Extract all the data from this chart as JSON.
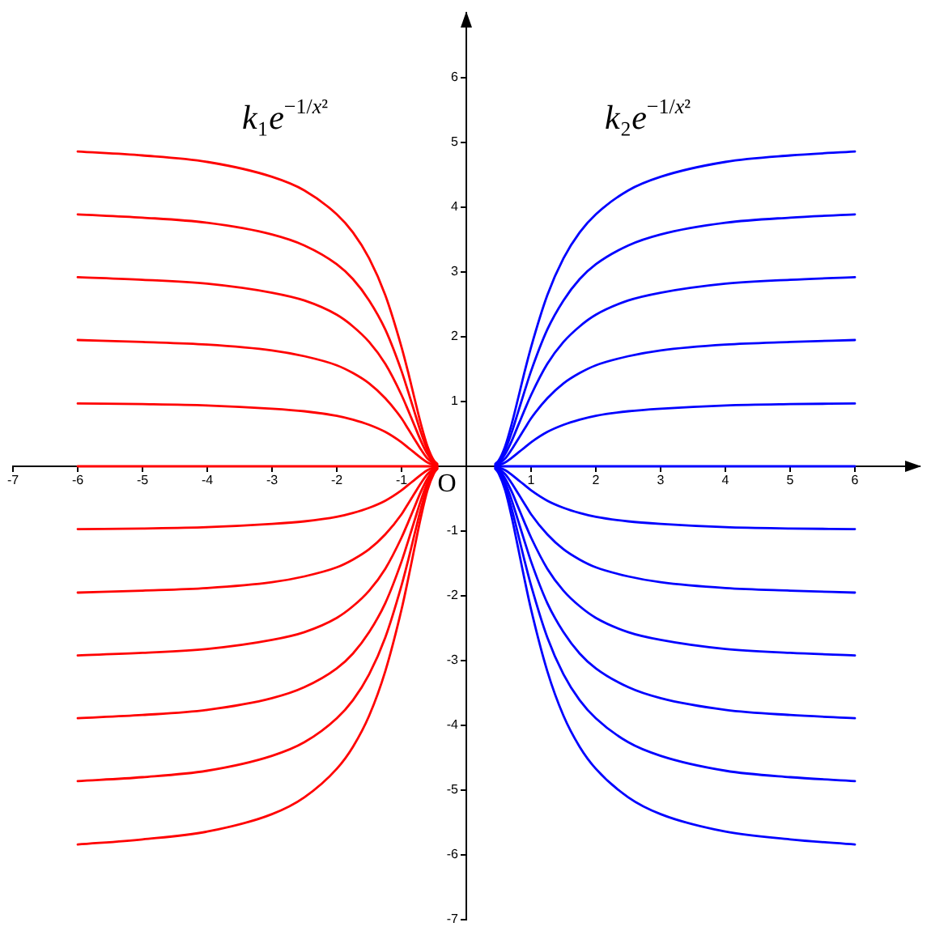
{
  "chart_data": {
    "type": "line",
    "xlim": [
      -7,
      7
    ],
    "ylim": [
      -7,
      7
    ],
    "xticks": [
      -7,
      -6,
      -5,
      -4,
      -3,
      -2,
      -1,
      1,
      2,
      3,
      4,
      5,
      6
    ],
    "yticks": [
      -7,
      -6,
      -5,
      -4,
      -3,
      -2,
      -1,
      1,
      2,
      3,
      4,
      5,
      6
    ],
    "grid": false,
    "legend": false,
    "marker": "none",
    "line_style": "solid",
    "annotations": [
      "k₁e$^{−1/x²}$",
      "k₂e$^{−1/x²}$",
      "O"
    ],
    "series": [
      {
        "color": "#ff0000",
        "x": [
          -6,
          -5,
          -4,
          -3,
          -2.5,
          -2,
          -1.75,
          -1.5,
          -1.25,
          -1,
          -0.9,
          -0.8,
          -0.7,
          -0.6,
          -0.5,
          -0.45
        ],
        "values": [
          4.86,
          4.8,
          4.7,
          4.47,
          4.26,
          3.89,
          3.61,
          3.21,
          2.64,
          1.84,
          1.46,
          1.05,
          0.65,
          0.31,
          0.09,
          0.04
        ]
      },
      {
        "color": "#ff0000",
        "x": [
          -6,
          -5,
          -4,
          -3,
          -2.5,
          -2,
          -1.75,
          -1.5,
          -1.25,
          -1,
          -0.9,
          -0.8,
          -0.7,
          -0.6,
          -0.5,
          -0.45
        ],
        "values": [
          3.89,
          3.84,
          3.76,
          3.58,
          3.41,
          3.12,
          2.89,
          2.56,
          2.11,
          1.47,
          1.16,
          0.84,
          0.52,
          0.25,
          0.07,
          0.03
        ]
      },
      {
        "color": "#ff0000",
        "x": [
          -6,
          -5,
          -4,
          -3,
          -2.5,
          -2,
          -1.75,
          -1.5,
          -1.25,
          -1,
          -0.9,
          -0.8,
          -0.7,
          -0.6,
          -0.5,
          -0.45
        ],
        "values": [
          2.92,
          2.88,
          2.82,
          2.68,
          2.56,
          2.34,
          2.16,
          1.92,
          1.58,
          1.1,
          0.87,
          0.63,
          0.39,
          0.19,
          0.05,
          0.02
        ]
      },
      {
        "color": "#ff0000",
        "x": [
          -6,
          -5,
          -4,
          -3,
          -2.5,
          -2,
          -1.75,
          -1.5,
          -1.25,
          -1,
          -0.9,
          -0.8,
          -0.7,
          -0.6,
          -0.5,
          -0.45
        ],
        "values": [
          1.95,
          1.92,
          1.88,
          1.79,
          1.7,
          1.56,
          1.44,
          1.28,
          1.05,
          0.74,
          0.58,
          0.42,
          0.26,
          0.12,
          0.04,
          0.01
        ]
      },
      {
        "color": "#ff0000",
        "x": [
          -6,
          -5,
          -4,
          -3,
          -2.5,
          -2,
          -1.75,
          -1.5,
          -1.25,
          -1,
          -0.9,
          -0.8,
          -0.7,
          -0.6,
          -0.5,
          -0.45
        ],
        "values": [
          0.97,
          0.96,
          0.94,
          0.89,
          0.85,
          0.78,
          0.72,
          0.64,
          0.53,
          0.37,
          0.29,
          0.21,
          0.13,
          0.06,
          0.02,
          0.01
        ]
      },
      {
        "color": "#ff0000",
        "x": [
          -6,
          -5,
          -4,
          -3,
          -2.5,
          -2,
          -1.75,
          -1.5,
          -1.25,
          -1,
          -0.9,
          -0.8,
          -0.7,
          -0.6,
          -0.5,
          -0.45
        ],
        "values": [
          0,
          0,
          0,
          0,
          0,
          0,
          0,
          0,
          0,
          0,
          0,
          0,
          0,
          0,
          0,
          0
        ]
      },
      {
        "color": "#ff0000",
        "x": [
          -6,
          -5,
          -4,
          -3,
          -2.5,
          -2,
          -1.75,
          -1.5,
          -1.25,
          -1,
          -0.9,
          -0.8,
          -0.7,
          -0.6,
          -0.5,
          -0.45
        ],
        "values": [
          -0.97,
          -0.96,
          -0.94,
          -0.89,
          -0.85,
          -0.78,
          -0.72,
          -0.64,
          -0.53,
          -0.37,
          -0.29,
          -0.21,
          -0.13,
          -0.06,
          -0.02,
          -0.01
        ]
      },
      {
        "color": "#ff0000",
        "x": [
          -6,
          -5,
          -4,
          -3,
          -2.5,
          -2,
          -1.75,
          -1.5,
          -1.25,
          -1,
          -0.9,
          -0.8,
          -0.7,
          -0.6,
          -0.5,
          -0.45
        ],
        "values": [
          -1.95,
          -1.92,
          -1.88,
          -1.79,
          -1.7,
          -1.56,
          -1.44,
          -1.28,
          -1.05,
          -0.74,
          -0.58,
          -0.42,
          -0.26,
          -0.12,
          -0.04,
          -0.01
        ]
      },
      {
        "color": "#ff0000",
        "x": [
          -6,
          -5,
          -4,
          -3,
          -2.5,
          -2,
          -1.75,
          -1.5,
          -1.25,
          -1,
          -0.9,
          -0.8,
          -0.7,
          -0.6,
          -0.5,
          -0.45
        ],
        "values": [
          -2.92,
          -2.88,
          -2.82,
          -2.68,
          -2.56,
          -2.34,
          -2.16,
          -1.92,
          -1.58,
          -1.1,
          -0.87,
          -0.63,
          -0.39,
          -0.19,
          -0.05,
          -0.02
        ]
      },
      {
        "color": "#ff0000",
        "x": [
          -6,
          -5,
          -4,
          -3,
          -2.5,
          -2,
          -1.75,
          -1.5,
          -1.25,
          -1,
          -0.9,
          -0.8,
          -0.7,
          -0.6,
          -0.5,
          -0.45
        ],
        "values": [
          -3.89,
          -3.84,
          -3.76,
          -3.58,
          -3.41,
          -3.12,
          -2.89,
          -2.56,
          -2.11,
          -1.47,
          -1.16,
          -0.84,
          -0.52,
          -0.25,
          -0.07,
          -0.03
        ]
      },
      {
        "color": "#ff0000",
        "x": [
          -6,
          -5,
          -4,
          -3,
          -2.5,
          -2,
          -1.75,
          -1.5,
          -1.25,
          -1,
          -0.9,
          -0.8,
          -0.7,
          -0.6,
          -0.5,
          -0.45
        ],
        "values": [
          -4.86,
          -4.8,
          -4.7,
          -4.47,
          -4.26,
          -3.89,
          -3.61,
          -3.21,
          -2.64,
          -1.84,
          -1.46,
          -1.05,
          -0.65,
          -0.31,
          -0.09,
          -0.04
        ]
      },
      {
        "color": "#ff0000",
        "x": [
          -6,
          -5,
          -4,
          -3,
          -2.5,
          -2,
          -1.75,
          -1.5,
          -1.25,
          -1,
          -0.9,
          -0.8,
          -0.7,
          -0.6,
          -0.5,
          -0.45
        ],
        "values": [
          -5.84,
          -5.76,
          -5.64,
          -5.37,
          -5.11,
          -4.67,
          -4.33,
          -3.85,
          -3.16,
          -2.21,
          -1.75,
          -1.26,
          -0.78,
          -0.37,
          -0.11,
          -0.04
        ]
      },
      {
        "color": "#0000ff",
        "x": [
          0.45,
          0.5,
          0.6,
          0.7,
          0.8,
          0.9,
          1,
          1.25,
          1.5,
          1.75,
          2,
          2.5,
          3,
          4,
          5,
          6
        ],
        "values": [
          0.04,
          0.09,
          0.31,
          0.65,
          1.05,
          1.46,
          1.84,
          2.64,
          3.21,
          3.61,
          3.89,
          4.26,
          4.47,
          4.7,
          4.8,
          4.86
        ]
      },
      {
        "color": "#0000ff",
        "x": [
          0.45,
          0.5,
          0.6,
          0.7,
          0.8,
          0.9,
          1,
          1.25,
          1.5,
          1.75,
          2,
          2.5,
          3,
          4,
          5,
          6
        ],
        "values": [
          0.03,
          0.07,
          0.25,
          0.52,
          0.84,
          1.16,
          1.47,
          2.11,
          2.56,
          2.89,
          3.12,
          3.41,
          3.58,
          3.76,
          3.84,
          3.89
        ]
      },
      {
        "color": "#0000ff",
        "x": [
          0.45,
          0.5,
          0.6,
          0.7,
          0.8,
          0.9,
          1,
          1.25,
          1.5,
          1.75,
          2,
          2.5,
          3,
          4,
          5,
          6
        ],
        "values": [
          0.02,
          0.05,
          0.19,
          0.39,
          0.63,
          0.87,
          1.1,
          1.58,
          1.92,
          2.16,
          2.34,
          2.56,
          2.68,
          2.82,
          2.88,
          2.92
        ]
      },
      {
        "color": "#0000ff",
        "x": [
          0.45,
          0.5,
          0.6,
          0.7,
          0.8,
          0.9,
          1,
          1.25,
          1.5,
          1.75,
          2,
          2.5,
          3,
          4,
          5,
          6
        ],
        "values": [
          0.01,
          0.04,
          0.12,
          0.26,
          0.42,
          0.58,
          0.74,
          1.05,
          1.28,
          1.44,
          1.56,
          1.7,
          1.79,
          1.88,
          1.92,
          1.95
        ]
      },
      {
        "color": "#0000ff",
        "x": [
          0.45,
          0.5,
          0.6,
          0.7,
          0.8,
          0.9,
          1,
          1.25,
          1.5,
          1.75,
          2,
          2.5,
          3,
          4,
          5,
          6
        ],
        "values": [
          0.01,
          0.02,
          0.06,
          0.13,
          0.21,
          0.29,
          0.37,
          0.53,
          0.64,
          0.72,
          0.78,
          0.85,
          0.89,
          0.94,
          0.96,
          0.97
        ]
      },
      {
        "color": "#0000ff",
        "x": [
          0.45,
          0.5,
          0.6,
          0.7,
          0.8,
          0.9,
          1,
          1.25,
          1.5,
          1.75,
          2,
          2.5,
          3,
          4,
          5,
          6
        ],
        "values": [
          0,
          0,
          0,
          0,
          0,
          0,
          0,
          0,
          0,
          0,
          0,
          0,
          0,
          0,
          0,
          0
        ]
      },
      {
        "color": "#0000ff",
        "x": [
          0.45,
          0.5,
          0.6,
          0.7,
          0.8,
          0.9,
          1,
          1.25,
          1.5,
          1.75,
          2,
          2.5,
          3,
          4,
          5,
          6
        ],
        "values": [
          -0.01,
          -0.02,
          -0.06,
          -0.13,
          -0.21,
          -0.29,
          -0.37,
          -0.53,
          -0.64,
          -0.72,
          -0.78,
          -0.85,
          -0.89,
          -0.94,
          -0.96,
          -0.97
        ]
      },
      {
        "color": "#0000ff",
        "x": [
          0.45,
          0.5,
          0.6,
          0.7,
          0.8,
          0.9,
          1,
          1.25,
          1.5,
          1.75,
          2,
          2.5,
          3,
          4,
          5,
          6
        ],
        "values": [
          -0.01,
          -0.04,
          -0.12,
          -0.26,
          -0.42,
          -0.58,
          -0.74,
          -1.05,
          -1.28,
          -1.44,
          -1.56,
          -1.7,
          -1.79,
          -1.88,
          -1.92,
          -1.95
        ]
      },
      {
        "color": "#0000ff",
        "x": [
          0.45,
          0.5,
          0.6,
          0.7,
          0.8,
          0.9,
          1,
          1.25,
          1.5,
          1.75,
          2,
          2.5,
          3,
          4,
          5,
          6
        ],
        "values": [
          -0.02,
          -0.05,
          -0.19,
          -0.39,
          -0.63,
          -0.87,
          -1.1,
          -1.58,
          -1.92,
          -2.16,
          -2.34,
          -2.56,
          -2.68,
          -2.82,
          -2.88,
          -2.92
        ]
      },
      {
        "color": "#0000ff",
        "x": [
          0.45,
          0.5,
          0.6,
          0.7,
          0.8,
          0.9,
          1,
          1.25,
          1.5,
          1.75,
          2,
          2.5,
          3,
          4,
          5,
          6
        ],
        "values": [
          -0.03,
          -0.07,
          -0.25,
          -0.52,
          -0.84,
          -1.16,
          -1.47,
          -2.11,
          -2.56,
          -2.89,
          -3.12,
          -3.41,
          -3.58,
          -3.76,
          -3.84,
          -3.89
        ]
      },
      {
        "color": "#0000ff",
        "x": [
          0.45,
          0.5,
          0.6,
          0.7,
          0.8,
          0.9,
          1,
          1.25,
          1.5,
          1.75,
          2,
          2.5,
          3,
          4,
          5,
          6
        ],
        "values": [
          -0.04,
          -0.09,
          -0.31,
          -0.65,
          -1.05,
          -1.46,
          -1.84,
          -2.64,
          -3.21,
          -3.61,
          -3.89,
          -4.26,
          -4.47,
          -4.7,
          -4.8,
          -4.86
        ]
      },
      {
        "color": "#0000ff",
        "x": [
          0.45,
          0.5,
          0.6,
          0.7,
          0.8,
          0.9,
          1,
          1.25,
          1.5,
          1.75,
          2,
          2.5,
          3,
          4,
          5,
          6
        ],
        "values": [
          -0.04,
          -0.11,
          -0.37,
          -0.78,
          -1.26,
          -1.75,
          -2.21,
          -3.16,
          -3.85,
          -4.33,
          -4.67,
          -5.11,
          -5.37,
          -5.64,
          -5.76,
          -5.84
        ]
      }
    ]
  }
}
